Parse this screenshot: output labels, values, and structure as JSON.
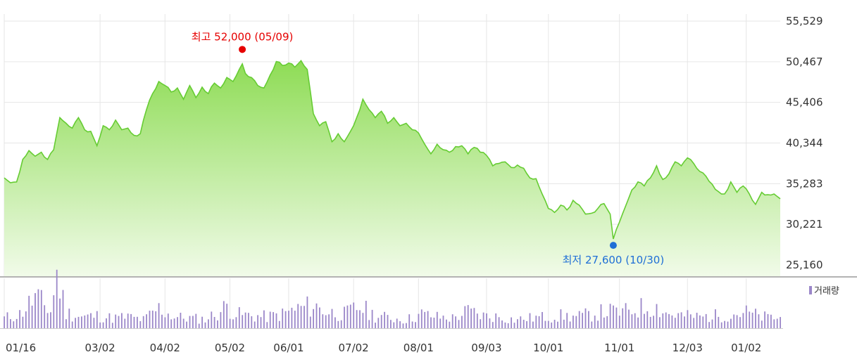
{
  "chart_data": {
    "type": "area",
    "colors": {
      "price_line": "#66cc33",
      "price_fill_top": "#8edc55",
      "price_fill_bottom": "#f1fbe9",
      "volume_bar": "#9b87c9",
      "grid": "#e6e6e6",
      "high_marker": "#e60000",
      "low_marker": "#1f6fd6"
    },
    "price_axis": {
      "ticks": [
        25160,
        30221,
        35283,
        40344,
        45406,
        50467,
        55529
      ],
      "tick_labels": [
        "25,160",
        "30,221",
        "35,283",
        "40,344",
        "45,406",
        "50,467",
        "55,529"
      ],
      "ylim": [
        25160,
        55529
      ]
    },
    "x_axis": {
      "tick_labels": [
        "01/16",
        "03/02",
        "04/02",
        "05/02",
        "06/01",
        "07/02",
        "08/01",
        "09/03",
        "10/01",
        "11/01",
        "12/03",
        "01/02"
      ],
      "tick_index": [
        0,
        31,
        52,
        73,
        92,
        113,
        134,
        156,
        176,
        199,
        221,
        240
      ]
    },
    "annotations": {
      "high": {
        "text": "최고 52,000 (05/09)",
        "index": 77,
        "value": 52000
      },
      "low": {
        "text": "최저 27,600 (10/30)",
        "index": 197,
        "value": 27600
      }
    },
    "volume_legend": "거래량",
    "price_anchors": [
      [
        0,
        36000
      ],
      [
        2,
        35400
      ],
      [
        4,
        35500
      ],
      [
        6,
        38300
      ],
      [
        8,
        39400
      ],
      [
        10,
        38700
      ],
      [
        12,
        39200
      ],
      [
        14,
        38300
      ],
      [
        16,
        39500
      ],
      [
        18,
        43500
      ],
      [
        20,
        42800
      ],
      [
        22,
        42200
      ],
      [
        24,
        43500
      ],
      [
        26,
        42000
      ],
      [
        28,
        41800
      ],
      [
        30,
        40000
      ],
      [
        32,
        42500
      ],
      [
        34,
        42000
      ],
      [
        36,
        43200
      ],
      [
        38,
        42000
      ],
      [
        40,
        42200
      ],
      [
        42,
        41300
      ],
      [
        44,
        41500
      ],
      [
        46,
        44500
      ],
      [
        48,
        46500
      ],
      [
        50,
        48000
      ],
      [
        52,
        47500
      ],
      [
        54,
        46700
      ],
      [
        56,
        47200
      ],
      [
        58,
        45800
      ],
      [
        60,
        47500
      ],
      [
        62,
        46000
      ],
      [
        64,
        47300
      ],
      [
        66,
        46500
      ],
      [
        68,
        47800
      ],
      [
        70,
        47200
      ],
      [
        72,
        48500
      ],
      [
        74,
        48000
      ],
      [
        76,
        49500
      ],
      [
        77,
        50200
      ],
      [
        78,
        49000
      ],
      [
        80,
        48500
      ],
      [
        82,
        47500
      ],
      [
        84,
        47200
      ],
      [
        86,
        48800
      ],
      [
        88,
        50500
      ],
      [
        90,
        50000
      ],
      [
        92,
        50300
      ],
      [
        94,
        49800
      ],
      [
        96,
        50600
      ],
      [
        98,
        49500
      ],
      [
        100,
        44000
      ],
      [
        102,
        42500
      ],
      [
        104,
        43000
      ],
      [
        106,
        40500
      ],
      [
        108,
        41500
      ],
      [
        110,
        40500
      ],
      [
        112,
        41800
      ],
      [
        114,
        43500
      ],
      [
        116,
        45800
      ],
      [
        118,
        44500
      ],
      [
        120,
        43500
      ],
      [
        122,
        44300
      ],
      [
        124,
        42800
      ],
      [
        126,
        43500
      ],
      [
        128,
        42500
      ],
      [
        130,
        42800
      ],
      [
        132,
        42000
      ],
      [
        134,
        41600
      ],
      [
        136,
        40200
      ],
      [
        138,
        39000
      ],
      [
        140,
        40200
      ],
      [
        142,
        39500
      ],
      [
        144,
        39200
      ],
      [
        146,
        39900
      ],
      [
        148,
        40000
      ],
      [
        150,
        39000
      ],
      [
        152,
        39800
      ],
      [
        154,
        39200
      ],
      [
        156,
        38800
      ],
      [
        158,
        37500
      ],
      [
        160,
        37800
      ],
      [
        162,
        38000
      ],
      [
        164,
        37300
      ],
      [
        166,
        37600
      ],
      [
        168,
        37200
      ],
      [
        170,
        36000
      ],
      [
        172,
        35900
      ],
      [
        174,
        34000
      ],
      [
        176,
        32200
      ],
      [
        178,
        31700
      ],
      [
        180,
        32600
      ],
      [
        182,
        32000
      ],
      [
        184,
        33200
      ],
      [
        186,
        32600
      ],
      [
        188,
        31500
      ],
      [
        190,
        31600
      ],
      [
        192,
        32200
      ],
      [
        194,
        32800
      ],
      [
        196,
        31500
      ],
      [
        197,
        28400
      ],
      [
        199,
        30500
      ],
      [
        201,
        32500
      ],
      [
        203,
        34500
      ],
      [
        205,
        35500
      ],
      [
        207,
        35000
      ],
      [
        209,
        36000
      ],
      [
        211,
        37500
      ],
      [
        213,
        35800
      ],
      [
        215,
        36500
      ],
      [
        217,
        38000
      ],
      [
        219,
        37500
      ],
      [
        221,
        38500
      ],
      [
        223,
        37800
      ],
      [
        225,
        36800
      ],
      [
        227,
        36200
      ],
      [
        229,
        35200
      ],
      [
        231,
        34300
      ],
      [
        233,
        34000
      ],
      [
        235,
        35500
      ],
      [
        237,
        34200
      ],
      [
        239,
        35000
      ],
      [
        241,
        34000
      ],
      [
        243,
        32700
      ],
      [
        245,
        34200
      ],
      [
        247,
        33900
      ],
      [
        249,
        34000
      ],
      [
        251,
        33400
      ]
    ],
    "volume_anchors": [
      [
        0,
        18
      ],
      [
        5,
        25
      ],
      [
        10,
        55
      ],
      [
        15,
        30
      ],
      [
        17,
        95
      ],
      [
        20,
        28
      ],
      [
        25,
        20
      ],
      [
        30,
        22
      ],
      [
        35,
        18
      ],
      [
        40,
        20
      ],
      [
        45,
        15
      ],
      [
        50,
        35
      ],
      [
        55,
        20
      ],
      [
        60,
        18
      ],
      [
        65,
        16
      ],
      [
        70,
        30
      ],
      [
        72,
        40
      ],
      [
        75,
        25
      ],
      [
        80,
        22
      ],
      [
        85,
        20
      ],
      [
        90,
        25
      ],
      [
        95,
        35
      ],
      [
        100,
        40
      ],
      [
        105,
        28
      ],
      [
        110,
        25
      ],
      [
        115,
        38
      ],
      [
        120,
        22
      ],
      [
        125,
        18
      ],
      [
        130,
        15
      ],
      [
        135,
        25
      ],
      [
        140,
        20
      ],
      [
        145,
        18
      ],
      [
        150,
        30
      ],
      [
        155,
        22
      ],
      [
        160,
        20
      ],
      [
        165,
        15
      ],
      [
        170,
        18
      ],
      [
        175,
        20
      ],
      [
        180,
        22
      ],
      [
        185,
        20
      ],
      [
        190,
        25
      ],
      [
        195,
        30
      ],
      [
        200,
        28
      ],
      [
        205,
        35
      ],
      [
        210,
        40
      ],
      [
        215,
        25
      ],
      [
        220,
        22
      ],
      [
        225,
        20
      ],
      [
        230,
        22
      ],
      [
        235,
        25
      ],
      [
        240,
        28
      ],
      [
        245,
        20
      ],
      [
        251,
        18
      ]
    ]
  }
}
